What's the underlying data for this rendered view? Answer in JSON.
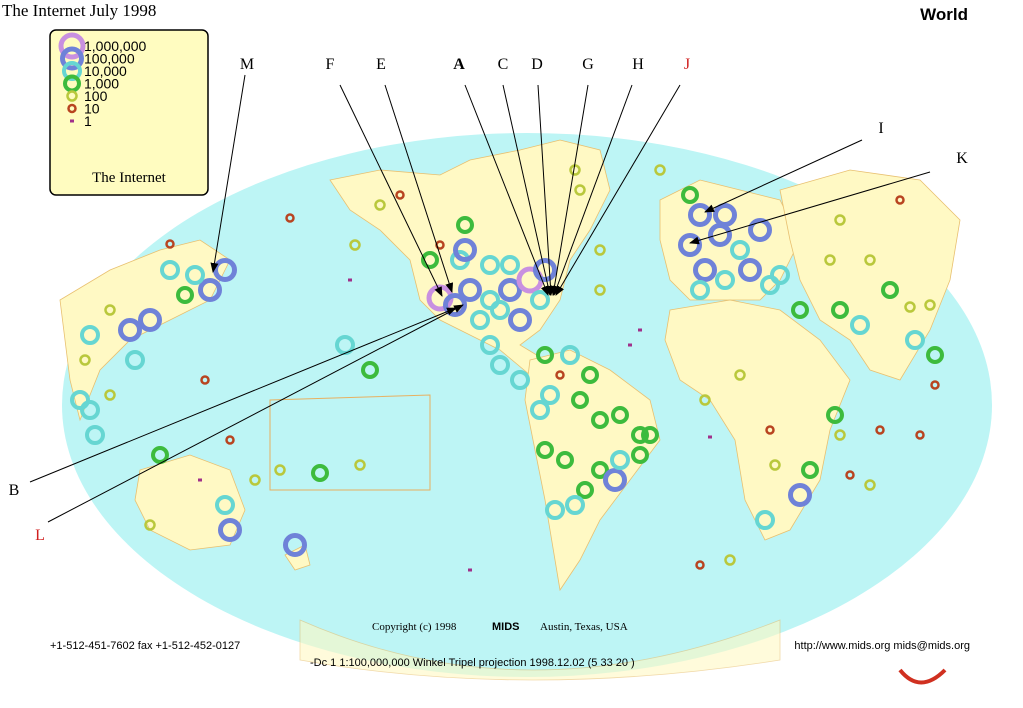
{
  "header": {
    "title": "The Internet  July 1998",
    "region": "World"
  },
  "legend": {
    "items": [
      "1,000,000",
      "100,000",
      "10,000",
      "1,000",
      "100",
      "10",
      "1"
    ],
    "caption": "The Internet"
  },
  "pointers": [
    {
      "label": "M"
    },
    {
      "label": "F"
    },
    {
      "label": "E"
    },
    {
      "label": "A"
    },
    {
      "label": "C"
    },
    {
      "label": "D"
    },
    {
      "label": "G"
    },
    {
      "label": "H"
    },
    {
      "label": "J"
    },
    {
      "label": "I"
    },
    {
      "label": "K"
    },
    {
      "label": "B"
    },
    {
      "label": "L"
    }
  ],
  "footer": {
    "copyright": "Copyright (c) 1998",
    "company": "MIDS",
    "location": "Austin, Texas, USA",
    "phone": "+1-512-451-7602 fax +1-512-452-0127",
    "web": "http://www.mids.org mids@mids.org",
    "projection": "-Dc 1 1:100,000,000 Winkel Tripel projection 1998.12.02 (5 33 20 )"
  }
}
